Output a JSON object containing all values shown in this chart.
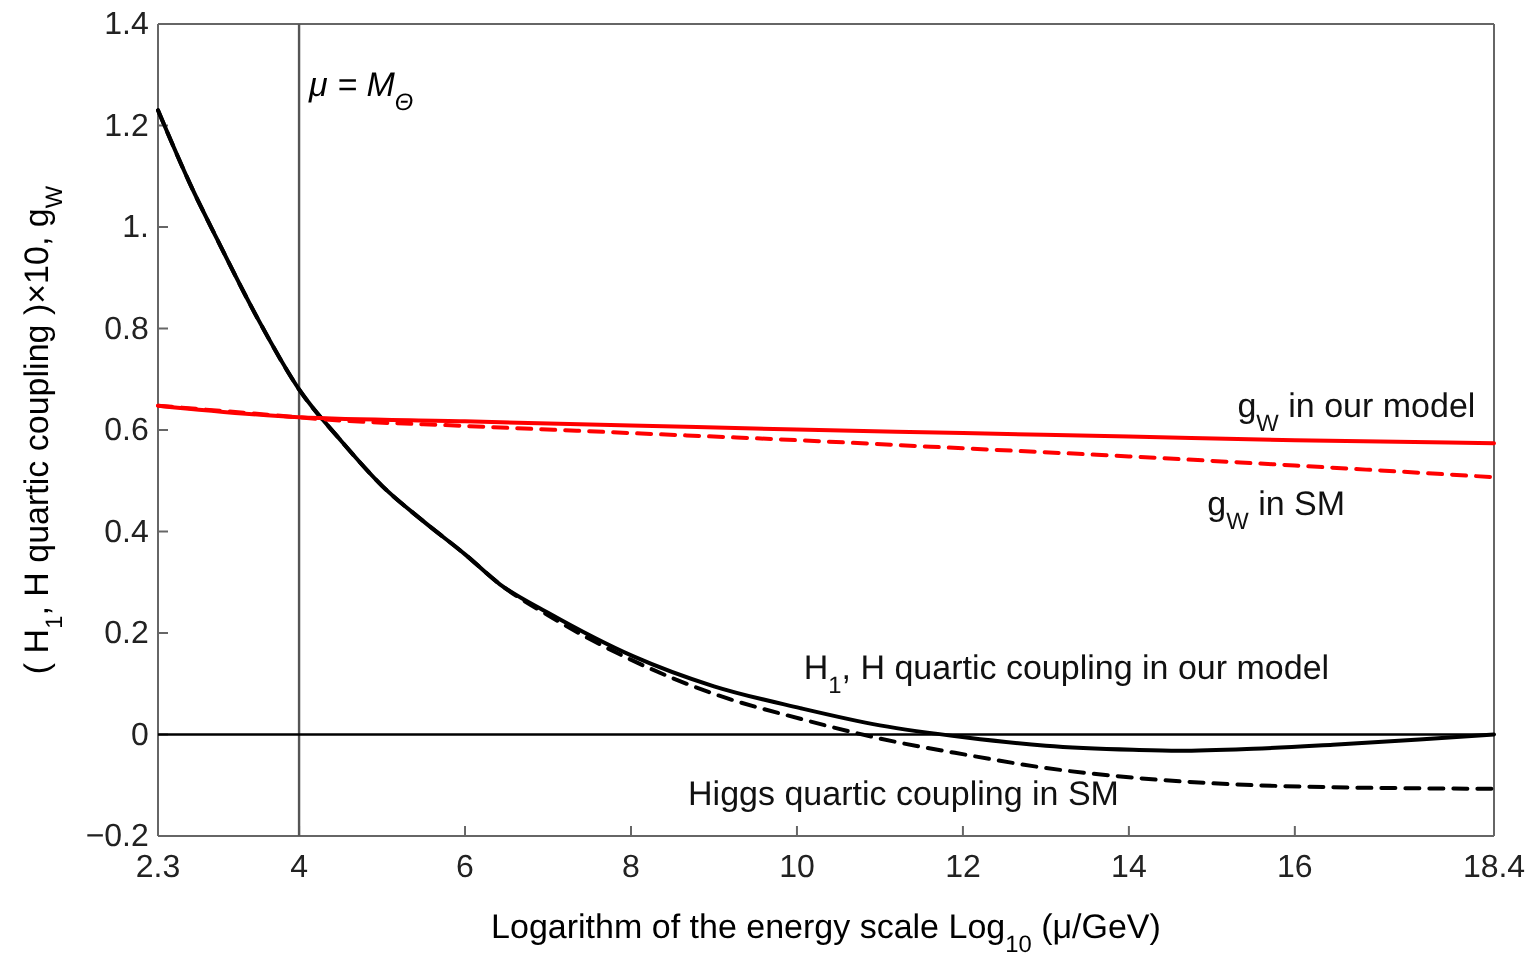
{
  "chart_data": {
    "type": "line",
    "xlabel": "Logarithm of the energy scale  Log$_{10}$ (μ/GeV)",
    "ylabel": "( H$_{1}$, H quartic coupling )×10, g$_{W}$",
    "xlim": [
      2.3,
      18.4
    ],
    "xticks": [
      2.3,
      4,
      6,
      8,
      10,
      12,
      14,
      16,
      18.4
    ],
    "ylim": [
      -0.2,
      1.4
    ],
    "yticks": [
      {
        "value": -0.2,
        "label": "−0.2"
      },
      0,
      0.2,
      0.4,
      0.6,
      0.8,
      {
        "value": 1,
        "label": "1."
      },
      1.2,
      1.4
    ],
    "grid": false,
    "marker": "none",
    "series": [
      {
        "name": "H$_{1}$,  H quartic coupling in our model",
        "color": "#000000",
        "line_style": "solid",
        "x": [
          2.3,
          2.7,
          3,
          3.5,
          4,
          4.5,
          5,
          5.5,
          6,
          6.42,
          7,
          8.03,
          9,
          10.04,
          11,
          12.04,
          13,
          14.05,
          14.6,
          15.5,
          16.46,
          17.5,
          18.4
        ],
        "values": [
          1.23,
          1.08,
          0.98,
          0.82,
          0.68,
          0.58,
          0.49,
          0.42,
          0.355,
          0.296,
          0.24,
          0.154,
          0.095,
          0.052,
          0.018,
          -0.006,
          -0.022,
          -0.03,
          -0.032,
          -0.028,
          -0.02,
          -0.01,
          0.0
        ]
      },
      {
        "name": "Higgs quartic coupling in SM",
        "color": "#000000",
        "line_style": "dashed",
        "x": [
          2.3,
          2.7,
          3,
          3.5,
          4,
          4.5,
          5,
          5.5,
          6,
          6.42,
          7,
          8.03,
          9,
          10.04,
          11,
          12.04,
          13,
          14.05,
          15,
          16.46,
          17.5,
          18.4
        ],
        "values": [
          1.23,
          1.08,
          0.98,
          0.82,
          0.68,
          0.58,
          0.49,
          0.42,
          0.355,
          0.296,
          0.235,
          0.145,
          0.08,
          0.031,
          -0.008,
          -0.04,
          -0.066,
          -0.085,
          -0.096,
          -0.104,
          -0.106,
          -0.107
        ]
      },
      {
        "name": "g$_{W}$ in our model",
        "color": "#ff0000",
        "line_style": "solid",
        "x": [
          2.3,
          4,
          6,
          8,
          10,
          12,
          14,
          16,
          18.4
        ],
        "values": [
          0.648,
          0.625,
          0.617,
          0.609,
          0.601,
          0.594,
          0.587,
          0.58,
          0.574
        ]
      },
      {
        "name": "g$_{W}$ in SM",
        "color": "#ff0000",
        "line_style": "dashed",
        "x": [
          2.3,
          4,
          4.3,
          6,
          8,
          10,
          12,
          14,
          16,
          18.4
        ],
        "values": [
          0.648,
          0.625,
          0.621,
          0.608,
          0.594,
          0.58,
          0.564,
          0.548,
          0.53,
          0.507
        ]
      }
    ],
    "ref_lines": [
      {
        "axis": "x",
        "value": 4,
        "label": "μ = M$_{Θ}$",
        "color": "#555555"
      },
      {
        "axis": "y",
        "value": 0,
        "color": "#000000"
      }
    ]
  }
}
